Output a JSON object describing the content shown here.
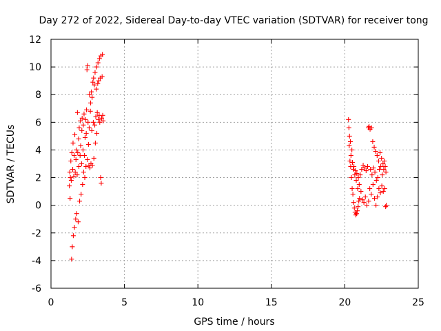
{
  "chart_data": {
    "type": "scatter",
    "title": "Day 272 of 2022, Sidereal Day-to-day VTEC variation (SDTVAR) for receiver tong",
    "xlabel": "GPS time / hours",
    "ylabel": "SDTVAR / TECUs",
    "xlim": [
      0,
      25
    ],
    "ylim": [
      -6,
      12
    ],
    "xticks": [
      "0",
      "5",
      "10",
      "15",
      "20",
      "25"
    ],
    "yticks": [
      "-6",
      "-4",
      "-2",
      "0",
      "2",
      "4",
      "6",
      "8",
      "10",
      "12"
    ],
    "grid": true,
    "marker": "plus",
    "color": "#ff0000",
    "series": [
      {
        "points": [
          [
            1.25,
            1.4
          ],
          [
            1.28,
            2.4
          ],
          [
            1.3,
            0.5
          ],
          [
            1.32,
            2.0
          ],
          [
            1.35,
            3.2
          ],
          [
            1.38,
            1.8
          ],
          [
            1.4,
            -3.9
          ],
          [
            1.42,
            3.8
          ],
          [
            1.45,
            -3.0
          ],
          [
            1.48,
            2.6
          ],
          [
            1.5,
            4.5
          ],
          [
            1.52,
            -2.2
          ],
          [
            1.55,
            2.1
          ],
          [
            1.58,
            3.6
          ],
          [
            1.6,
            -1.6
          ],
          [
            1.62,
            5.1
          ],
          [
            1.65,
            2.4
          ],
          [
            1.68,
            -1.0
          ],
          [
            1.7,
            3.3
          ],
          [
            1.72,
            4.0
          ],
          [
            1.75,
            -0.6
          ],
          [
            1.78,
            2.2
          ],
          [
            1.8,
            6.7
          ],
          [
            1.82,
            3.8
          ],
          [
            1.85,
            -1.2
          ],
          [
            1.88,
            4.8
          ],
          [
            1.9,
            2.8
          ],
          [
            1.92,
            5.6
          ],
          [
            1.95,
            0.3
          ],
          [
            1.98,
            3.6
          ],
          [
            2.0,
            6.1
          ],
          [
            2.02,
            4.3
          ],
          [
            2.05,
            0.8
          ],
          [
            2.08,
            3.0
          ],
          [
            2.1,
            5.4
          ],
          [
            2.12,
            6.3
          ],
          [
            2.15,
            1.5
          ],
          [
            2.18,
            4.0
          ],
          [
            2.2,
            5.8
          ],
          [
            2.22,
            2.4
          ],
          [
            2.25,
            6.6
          ],
          [
            2.28,
            3.6
          ],
          [
            2.3,
            2.0
          ],
          [
            2.32,
            4.9
          ],
          [
            2.35,
            6.2
          ],
          [
            2.38,
            2.8
          ],
          [
            2.4,
            5.2
          ],
          [
            2.42,
            6.9
          ],
          [
            2.45,
            9.8
          ],
          [
            2.48,
            3.3
          ],
          [
            2.5,
            10.1
          ],
          [
            2.52,
            6.0
          ],
          [
            2.55,
            4.4
          ],
          [
            2.58,
            2.9
          ],
          [
            2.6,
            5.6
          ],
          [
            2.62,
            8.0
          ],
          [
            2.65,
            2.7
          ],
          [
            2.68,
            6.8
          ],
          [
            2.7,
            7.4
          ],
          [
            2.72,
            3.0
          ],
          [
            2.75,
            8.2
          ],
          [
            2.78,
            5.4
          ],
          [
            2.8,
            7.8
          ],
          [
            2.82,
            2.9
          ],
          [
            2.85,
            8.9
          ],
          [
            2.88,
            6.0
          ],
          [
            2.9,
            9.2
          ],
          [
            2.92,
            3.4
          ],
          [
            2.95,
            8.7
          ],
          [
            2.98,
            5.8
          ],
          [
            3.0,
            9.6
          ],
          [
            3.02,
            4.5
          ],
          [
            3.05,
            6.4
          ],
          [
            3.08,
            8.4
          ],
          [
            3.1,
            10.0
          ],
          [
            3.12,
            5.2
          ],
          [
            3.15,
            6.7
          ],
          [
            3.18,
            8.8
          ],
          [
            3.2,
            10.3
          ],
          [
            3.22,
            6.2
          ],
          [
            3.25,
            9.0
          ],
          [
            3.28,
            6.5
          ],
          [
            3.3,
            10.6
          ],
          [
            3.32,
            6.0
          ],
          [
            3.35,
            9.2
          ],
          [
            3.38,
            2.0
          ],
          [
            3.4,
            10.8
          ],
          [
            3.42,
            1.6
          ],
          [
            3.45,
            6.3
          ],
          [
            3.48,
            9.3
          ],
          [
            3.5,
            10.9
          ],
          [
            3.52,
            6.5
          ],
          [
            3.55,
            6.1
          ]
        ]
      },
      {
        "points": [
          [
            20.25,
            6.2
          ],
          [
            20.28,
            5.6
          ],
          [
            20.3,
            4.3
          ],
          [
            20.32,
            5.0
          ],
          [
            20.35,
            3.2
          ],
          [
            20.38,
            4.6
          ],
          [
            20.4,
            2.8
          ],
          [
            20.42,
            3.6
          ],
          [
            20.45,
            2.0
          ],
          [
            20.48,
            4.0
          ],
          [
            20.5,
            1.2
          ],
          [
            20.52,
            3.1
          ],
          [
            20.55,
            0.8
          ],
          [
            20.58,
            2.6
          ],
          [
            20.6,
            0.2
          ],
          [
            20.62,
            2.8
          ],
          [
            20.65,
            -0.2
          ],
          [
            20.68,
            2.2
          ],
          [
            20.7,
            -0.5
          ],
          [
            20.72,
            2.5
          ],
          [
            20.75,
            -0.7
          ],
          [
            20.78,
            1.8
          ],
          [
            20.8,
            -0.6
          ],
          [
            20.82,
            2.3
          ],
          [
            20.85,
            -0.4
          ],
          [
            20.88,
            1.2
          ],
          [
            20.9,
            -0.1
          ],
          [
            20.92,
            2.0
          ],
          [
            20.95,
            0.3
          ],
          [
            20.98,
            1.5
          ],
          [
            21.0,
            0.5
          ],
          [
            21.05,
            2.2
          ],
          [
            21.1,
            1.0
          ],
          [
            21.15,
            2.6
          ],
          [
            21.2,
            0.4
          ],
          [
            21.25,
            2.9
          ],
          [
            21.3,
            0.2
          ],
          [
            21.35,
            2.7
          ],
          [
            21.4,
            0.6
          ],
          [
            21.45,
            2.5
          ],
          [
            21.5,
            0.0
          ],
          [
            21.55,
            2.8
          ],
          [
            21.6,
            5.6
          ],
          [
            21.62,
            0.3
          ],
          [
            21.65,
            5.7
          ],
          [
            21.7,
            1.2
          ],
          [
            21.72,
            5.5
          ],
          [
            21.75,
            2.6
          ],
          [
            21.8,
            0.8
          ],
          [
            21.82,
            5.6
          ],
          [
            21.85,
            2.2
          ],
          [
            21.9,
            4.6
          ],
          [
            21.92,
            1.5
          ],
          [
            21.95,
            2.7
          ],
          [
            22.0,
            4.2
          ],
          [
            22.02,
            0.5
          ],
          [
            22.05,
            2.4
          ],
          [
            22.1,
            3.9
          ],
          [
            22.12,
            0.0
          ],
          [
            22.15,
            1.8
          ],
          [
            22.2,
            3.6
          ],
          [
            22.22,
            0.6
          ],
          [
            22.25,
            2.0
          ],
          [
            22.3,
            3.2
          ],
          [
            22.32,
            1.2
          ],
          [
            22.35,
            2.6
          ],
          [
            22.4,
            3.8
          ],
          [
            22.42,
            0.9
          ],
          [
            22.45,
            2.8
          ],
          [
            22.5,
            3.4
          ],
          [
            22.52,
            1.4
          ],
          [
            22.55,
            2.2
          ],
          [
            22.6,
            3.0
          ],
          [
            22.62,
            1.0
          ],
          [
            22.65,
            2.6
          ],
          [
            22.7,
            3.2
          ],
          [
            22.72,
            1.2
          ],
          [
            22.75,
            2.8
          ],
          [
            22.78,
            -0.1
          ],
          [
            22.8,
            2.4
          ],
          [
            22.82,
            0.0
          ]
        ]
      }
    ]
  }
}
